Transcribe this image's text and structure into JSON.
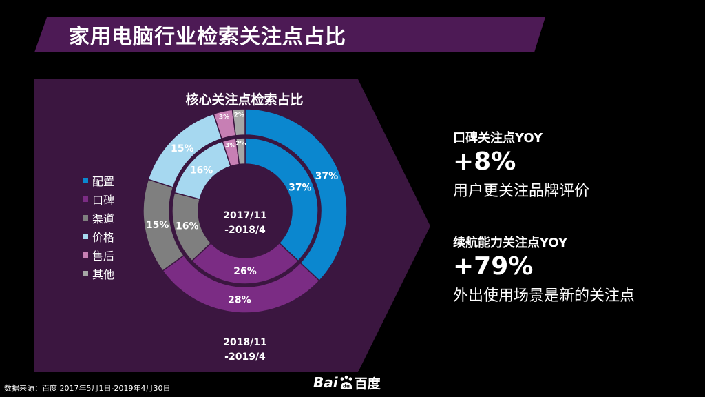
{
  "page": {
    "title": "家用电脑行业检索关注点占比"
  },
  "colors": {
    "purple": "#5a1a5c",
    "background": "#000000"
  },
  "chart_data": {
    "type": "donut",
    "title": "核心关注点检索占比",
    "inner_ring_label": "2017/11\n-2018/4",
    "outer_ring_label": "2018/11\n-2019/4",
    "center_label_lines": [
      "2017/11",
      "-2018/4"
    ],
    "bottom_label_lines": [
      "2018/11",
      "-2019/4"
    ],
    "legend_position": "left",
    "categories": [
      "配置",
      "口碑",
      "渠道",
      "价格",
      "售后",
      "其他"
    ],
    "colors": [
      "#0b87cf",
      "#7b2c84",
      "#7f7f7f",
      "#a6d8f0",
      "#c77fb4",
      "#a6a6a6"
    ],
    "series": [
      {
        "name": "2017/11-2018/4",
        "values": [
          37,
          26,
          16,
          16,
          3,
          2
        ]
      },
      {
        "name": "2018/11-2019/4",
        "values": [
          37,
          28,
          15,
          15,
          3,
          2
        ]
      }
    ]
  },
  "stats": [
    {
      "label": "口碑关注点YOY",
      "value": "+8%",
      "desc": "用户更关注品牌评价"
    },
    {
      "label": "续航能力关注点YOY",
      "value": "+79%",
      "desc": "外出使用场景是新的关注点"
    }
  ],
  "footer": {
    "source": "数据来源：百度 2017年5月1日-2019年4月30日"
  },
  "logo": {
    "text_latin": "Bai",
    "text_paw": "du",
    "text_cn": "百度"
  }
}
